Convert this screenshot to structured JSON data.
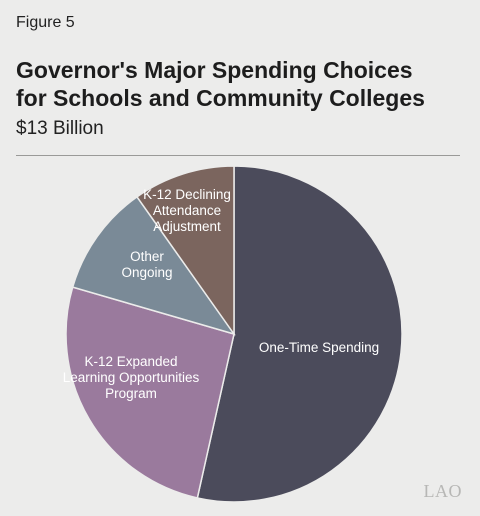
{
  "figure_label": "Figure 5",
  "title_lines": [
    "Governor's Major Spending Choices",
    "for Schools and Community Colleges"
  ],
  "subtitle": "$13 Billion",
  "logo": "LAO",
  "colors": {
    "one_time": "#4b4b5b",
    "expanded_learning": "#9a7a9d",
    "other_ongoing": "#7a8a97",
    "declining_attendance": "#7b655e",
    "slice_border": "#ececeb",
    "label_text": "#ffffff"
  },
  "chart_data": {
    "type": "pie",
    "title": "Governor's Major Spending Choices for Schools and Community Colleges",
    "subtitle": "$13 Billion",
    "start": "12 o'clock",
    "direction": "clockwise",
    "legend": "none",
    "slices": [
      {
        "label_lines": [
          "One-Time Spending"
        ],
        "value": 53.5,
        "color_key": "one_time"
      },
      {
        "label_lines": [
          "K-12 Expanded",
          "Learning Opportunities",
          "Program"
        ],
        "value": 26.0,
        "color_key": "expanded_learning"
      },
      {
        "label_lines": [
          "Other",
          "Ongoing"
        ],
        "value": 10.7,
        "color_key": "other_ongoing"
      },
      {
        "label_lines": [
          "K-12 Declining",
          "Attendance",
          "Adjustment"
        ],
        "value": 9.8,
        "color_key": "declining_attendance"
      }
    ]
  }
}
